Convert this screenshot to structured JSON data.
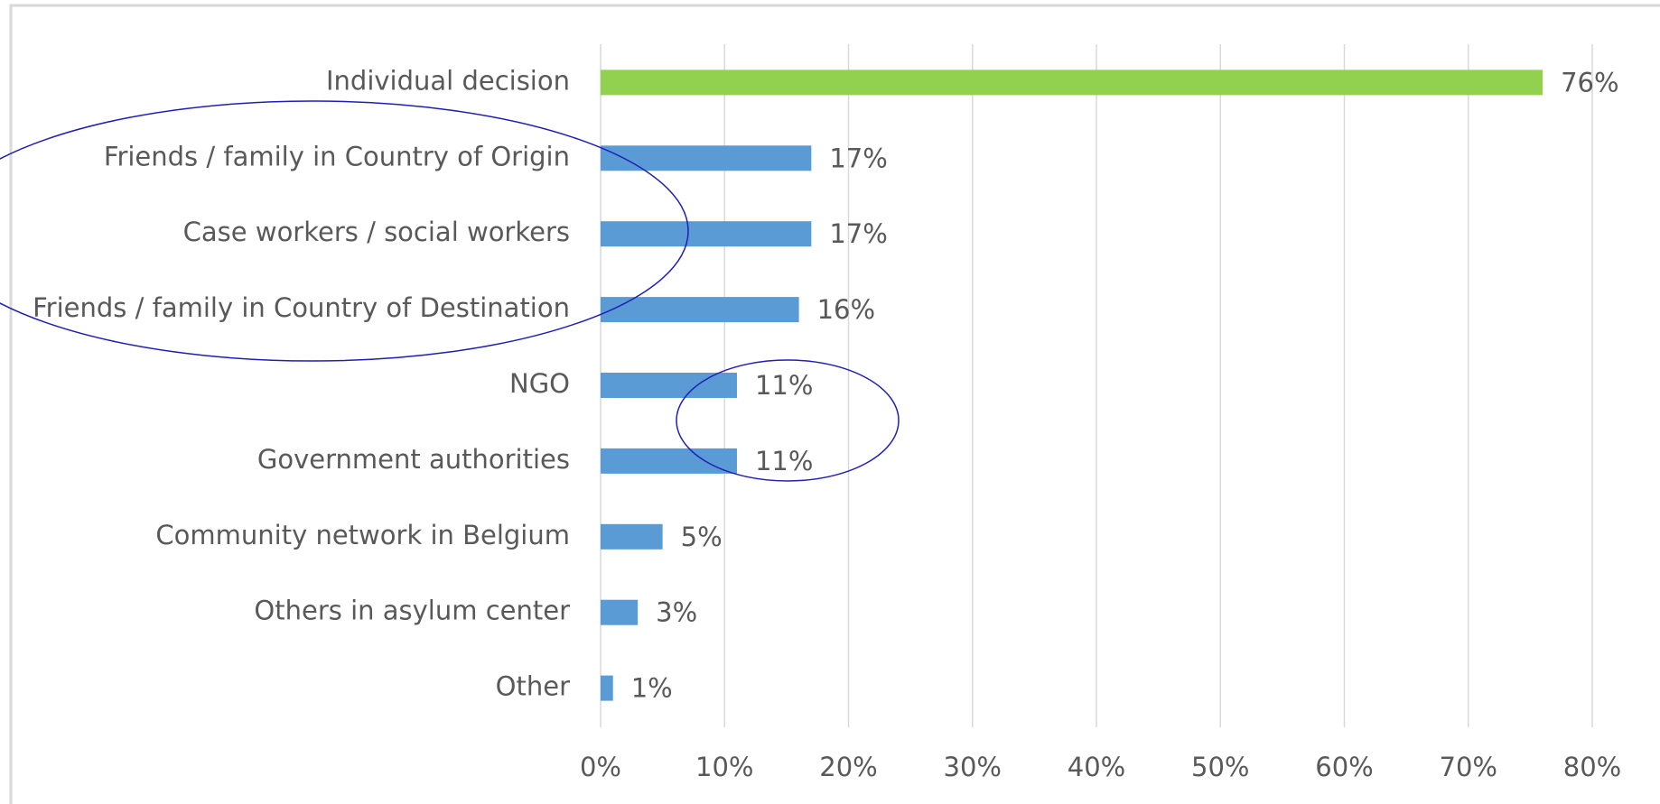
{
  "chart_data": {
    "type": "barh",
    "categories": [
      "Individual decision",
      "Friends / family in Country of Origin",
      "Case workers / social workers",
      "Friends / family in Country of Destination",
      "NGO",
      "Government authorities",
      "Community network in Belgium",
      "Others in asylum center",
      "Other"
    ],
    "values": [
      76,
      17,
      17,
      16,
      11,
      11,
      5,
      3,
      1
    ],
    "value_labels": [
      "76%",
      "17%",
      "17%",
      "16%",
      "11%",
      "11%",
      "5%",
      "3%",
      "1%"
    ],
    "colors": [
      "#92d050",
      "#5b9bd5",
      "#5b9bd5",
      "#5b9bd5",
      "#5b9bd5",
      "#5b9bd5",
      "#5b9bd5",
      "#5b9bd5",
      "#5b9bd5"
    ],
    "xlim": [
      0,
      80
    ],
    "xticks": [
      {
        "value": 0,
        "label": "0%"
      },
      {
        "value": 10,
        "label": "10%"
      },
      {
        "value": 20,
        "label": "20%"
      },
      {
        "value": 30,
        "label": "30%"
      },
      {
        "value": 40,
        "label": "40%"
      },
      {
        "value": 50,
        "label": "50%"
      },
      {
        "value": 60,
        "label": "60%"
      },
      {
        "value": 70,
        "label": "70%"
      },
      {
        "value": 80,
        "label": "80%"
      }
    ],
    "grid": true
  }
}
